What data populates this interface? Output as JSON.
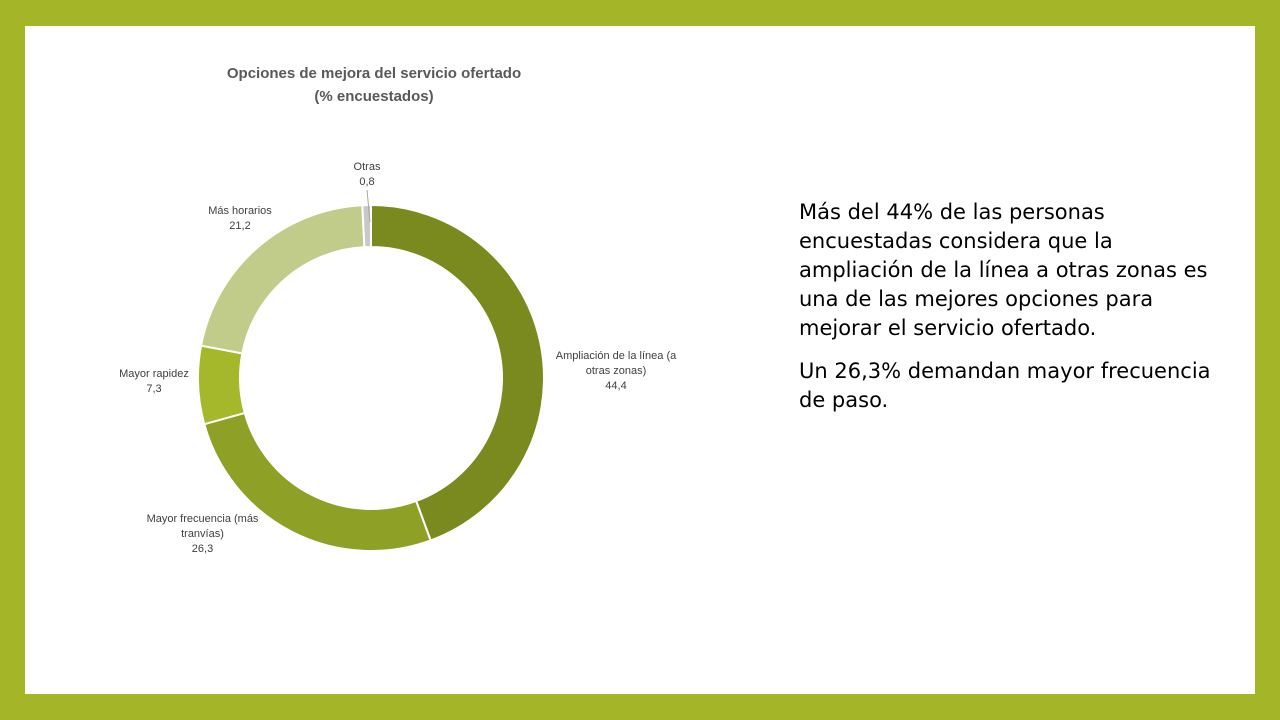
{
  "slide": {
    "text_paragraphs": [
      "Más del 44%  de las personas encuestadas considera que la ampliación de la línea a otras zonas es una de las mejores opciones para mejorar el servicio ofertado.",
      "Un 26,3% demandan mayor frecuencia de paso."
    ]
  },
  "colors": {
    "frame": "#a4b628",
    "background": "#ffffff",
    "segments": [
      "#7a8a1e",
      "#8fa026",
      "#a5b82c",
      "#c1cc8a",
      "#c8c8c8"
    ]
  },
  "chart_data": {
    "type": "donut",
    "title_lines": [
      "Opciones de mejora del servicio ofertado",
      "(% encuestados)"
    ],
    "slices": [
      {
        "label": "Ampliación de la línea (a otras zonas)",
        "value": 44.4,
        "value_text": "44,4"
      },
      {
        "label": "Mayor frecuencia (más tranvías)",
        "value": 26.3,
        "value_text": "26,3"
      },
      {
        "label": "Mayor rapidez",
        "value": 7.3,
        "value_text": "7,3"
      },
      {
        "label": "Más horarios",
        "value": 21.2,
        "value_text": "21,2"
      },
      {
        "label": "Otras",
        "value": 0.8,
        "value_text": "0,8"
      }
    ]
  }
}
